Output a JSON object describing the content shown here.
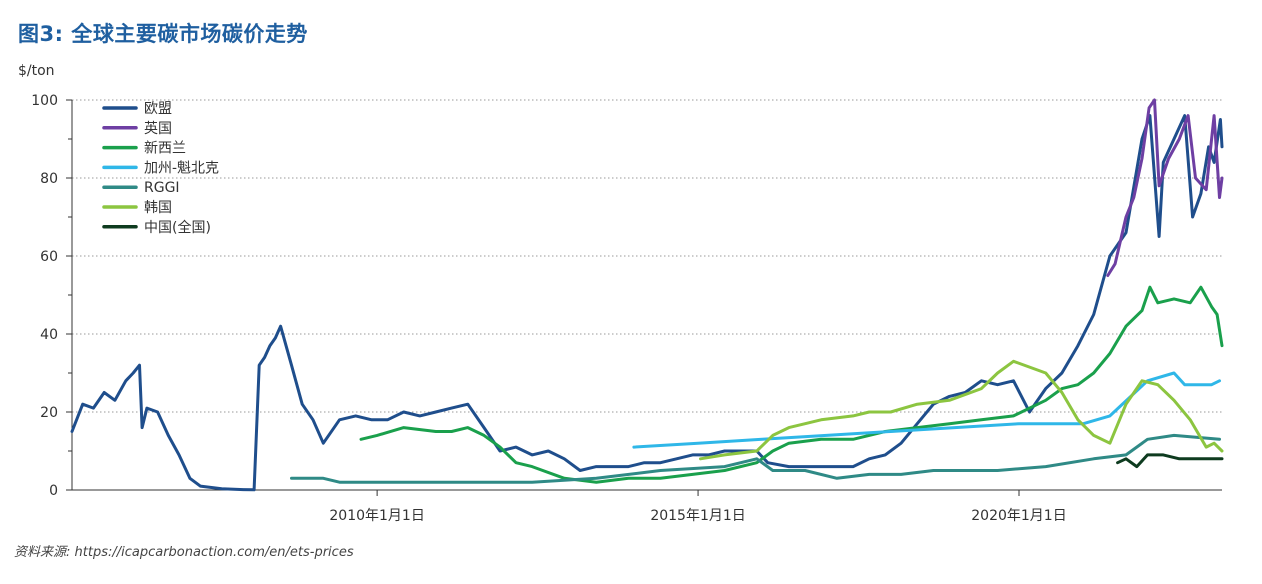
{
  "page": {
    "title": "图3: 全球主要碳市场碳价走势",
    "source": "资料来源: https://icapcarbonaction.com/en/ets-prices"
  },
  "chart_data": {
    "type": "line",
    "title": "图3: 全球主要碳市场碳价走势",
    "ylabel": "$/ton",
    "xlabel": "",
    "ylim": [
      0,
      100
    ],
    "xlim": [
      "2005-04-01",
      "2023-03-01"
    ],
    "yticks": [
      0,
      20,
      40,
      60,
      80,
      100
    ],
    "xticks": [
      {
        "date": "2010-01-01",
        "label": "2010年1月1日"
      },
      {
        "date": "2015-01-01",
        "label": "2015年1月1日"
      },
      {
        "date": "2020-01-01",
        "label": "2020年1月1日"
      }
    ],
    "grid": "horizontal dotted",
    "legend": "top-left",
    "series": [
      {
        "name": "欧盟",
        "color": "#1f4e8c",
        "points": [
          [
            "2005-04-01",
            15
          ],
          [
            "2005-06-01",
            22
          ],
          [
            "2005-08-01",
            21
          ],
          [
            "2005-10-01",
            25
          ],
          [
            "2005-12-01",
            23
          ],
          [
            "2006-02-01",
            28
          ],
          [
            "2006-03-15",
            30
          ],
          [
            "2006-04-20",
            32
          ],
          [
            "2006-05-05",
            16
          ],
          [
            "2006-06-01",
            21
          ],
          [
            "2006-08-01",
            20
          ],
          [
            "2006-10-01",
            14
          ],
          [
            "2006-12-01",
            9
          ],
          [
            "2007-02-01",
            3
          ],
          [
            "2007-04-01",
            1
          ],
          [
            "2007-08-01",
            0.3
          ],
          [
            "2007-12-01",
            0.1
          ],
          [
            "2008-02-01",
            0.05
          ],
          [
            "2008-03-01",
            32
          ],
          [
            "2008-04-01",
            34
          ],
          [
            "2008-05-01",
            37
          ],
          [
            "2008-06-01",
            39
          ],
          [
            "2008-07-01",
            42
          ],
          [
            "2008-09-01",
            32
          ],
          [
            "2008-11-01",
            22
          ],
          [
            "2009-01-01",
            18
          ],
          [
            "2009-03-01",
            12
          ],
          [
            "2009-06-01",
            18
          ],
          [
            "2009-09-01",
            19
          ],
          [
            "2009-12-01",
            18
          ],
          [
            "2010-03-01",
            18
          ],
          [
            "2010-06-01",
            20
          ],
          [
            "2010-09-01",
            19
          ],
          [
            "2010-12-01",
            20
          ],
          [
            "2011-03-01",
            21
          ],
          [
            "2011-06-01",
            22
          ],
          [
            "2011-09-01",
            16
          ],
          [
            "2011-12-01",
            10
          ],
          [
            "2012-03-01",
            11
          ],
          [
            "2012-06-01",
            9
          ],
          [
            "2012-09-01",
            10
          ],
          [
            "2012-12-01",
            8
          ],
          [
            "2013-03-01",
            5
          ],
          [
            "2013-06-01",
            6
          ],
          [
            "2013-09-01",
            6
          ],
          [
            "2013-12-01",
            6
          ],
          [
            "2014-03-01",
            7
          ],
          [
            "2014-06-01",
            7
          ],
          [
            "2014-09-01",
            8
          ],
          [
            "2014-12-01",
            9
          ],
          [
            "2015-03-01",
            9
          ],
          [
            "2015-06-01",
            10
          ],
          [
            "2015-09-01",
            10
          ],
          [
            "2015-12-01",
            10
          ],
          [
            "2016-02-01",
            7
          ],
          [
            "2016-06-01",
            6
          ],
          [
            "2016-09-01",
            6
          ],
          [
            "2016-12-01",
            6
          ],
          [
            "2017-03-01",
            6
          ],
          [
            "2017-06-01",
            6
          ],
          [
            "2017-09-01",
            8
          ],
          [
            "2017-12-01",
            9
          ],
          [
            "2018-03-01",
            12
          ],
          [
            "2018-06-01",
            17
          ],
          [
            "2018-09-01",
            22
          ],
          [
            "2018-12-01",
            24
          ],
          [
            "2019-03-01",
            25
          ],
          [
            "2019-06-01",
            28
          ],
          [
            "2019-09-01",
            27
          ],
          [
            "2019-12-01",
            28
          ],
          [
            "2020-03-01",
            20
          ],
          [
            "2020-06-01",
            26
          ],
          [
            "2020-09-01",
            30
          ],
          [
            "2020-12-01",
            37
          ],
          [
            "2021-03-01",
            45
          ],
          [
            "2021-06-01",
            60
          ],
          [
            "2021-09-01",
            66
          ],
          [
            "2021-12-01",
            90
          ],
          [
            "2022-01-15",
            96
          ],
          [
            "2022-03-08",
            65
          ],
          [
            "2022-04-01",
            84
          ],
          [
            "2022-06-01",
            90
          ],
          [
            "2022-08-01",
            96
          ],
          [
            "2022-09-15",
            70
          ],
          [
            "2022-11-01",
            76
          ],
          [
            "2022-12-15",
            88
          ],
          [
            "2023-01-15",
            84
          ],
          [
            "2023-02-20",
            95
          ],
          [
            "2023-03-01",
            88
          ]
        ]
      },
      {
        "name": "英国",
        "color": "#6e3fa3",
        "points": [
          [
            "2021-05-20",
            55
          ],
          [
            "2021-07-01",
            58
          ],
          [
            "2021-09-01",
            70
          ],
          [
            "2021-10-15",
            75
          ],
          [
            "2021-12-01",
            85
          ],
          [
            "2022-01-10",
            98
          ],
          [
            "2022-02-10",
            100
          ],
          [
            "2022-03-08",
            78
          ],
          [
            "2022-05-01",
            85
          ],
          [
            "2022-07-01",
            90
          ],
          [
            "2022-08-20",
            96
          ],
          [
            "2022-10-01",
            80
          ],
          [
            "2022-12-01",
            77
          ],
          [
            "2023-01-15",
            96
          ],
          [
            "2023-02-15",
            75
          ],
          [
            "2023-03-01",
            80
          ]
        ]
      },
      {
        "name": "新西兰",
        "color": "#1aa04c",
        "points": [
          [
            "2009-10-01",
            13
          ],
          [
            "2010-01-01",
            14
          ],
          [
            "2010-06-01",
            16
          ],
          [
            "2010-12-01",
            15
          ],
          [
            "2011-03-01",
            15
          ],
          [
            "2011-06-01",
            16
          ],
          [
            "2011-09-01",
            14
          ],
          [
            "2011-12-01",
            11
          ],
          [
            "2012-03-01",
            7
          ],
          [
            "2012-06-01",
            6
          ],
          [
            "2012-12-01",
            3
          ],
          [
            "2013-06-01",
            2
          ],
          [
            "2013-12-01",
            3
          ],
          [
            "2014-06-01",
            3
          ],
          [
            "2014-12-01",
            4
          ],
          [
            "2015-06-01",
            5
          ],
          [
            "2015-12-01",
            7
          ],
          [
            "2016-03-01",
            10
          ],
          [
            "2016-06-01",
            12
          ],
          [
            "2016-12-01",
            13
          ],
          [
            "2017-06-01",
            13
          ],
          [
            "2017-12-01",
            15
          ],
          [
            "2018-06-01",
            16
          ],
          [
            "2018-12-01",
            17
          ],
          [
            "2019-06-01",
            18
          ],
          [
            "2019-12-01",
            19
          ],
          [
            "2020-06-01",
            23
          ],
          [
            "2020-09-01",
            26
          ],
          [
            "2020-12-01",
            27
          ],
          [
            "2021-03-01",
            30
          ],
          [
            "2021-06-01",
            35
          ],
          [
            "2021-09-01",
            42
          ],
          [
            "2021-12-01",
            46
          ],
          [
            "2022-01-15",
            52
          ],
          [
            "2022-03-01",
            48
          ],
          [
            "2022-06-01",
            49
          ],
          [
            "2022-09-01",
            48
          ],
          [
            "2022-11-01",
            52
          ],
          [
            "2023-01-01",
            47
          ],
          [
            "2023-02-01",
            45
          ],
          [
            "2023-03-01",
            37
          ]
        ]
      },
      {
        "name": "加州-魁北克",
        "color": "#2fb7e8",
        "points": [
          [
            "2014-01-01",
            11
          ],
          [
            "2015-01-01",
            12
          ],
          [
            "2016-01-01",
            13
          ],
          [
            "2017-01-01",
            14
          ],
          [
            "2018-01-01",
            15
          ],
          [
            "2019-01-01",
            16
          ],
          [
            "2020-01-01",
            17
          ],
          [
            "2021-01-01",
            17
          ],
          [
            "2021-06-01",
            19
          ],
          [
            "2022-01-01",
            28
          ],
          [
            "2022-06-01",
            30
          ],
          [
            "2022-08-01",
            27
          ],
          [
            "2023-01-01",
            27
          ],
          [
            "2023-02-15",
            28
          ]
        ]
      },
      {
        "name": "RGGI",
        "color": "#2f8a86",
        "points": [
          [
            "2008-09-01",
            3
          ],
          [
            "2009-03-01",
            3
          ],
          [
            "2009-06-01",
            2
          ],
          [
            "2010-06-01",
            2
          ],
          [
            "2012-06-01",
            2
          ],
          [
            "2013-06-01",
            3
          ],
          [
            "2014-06-01",
            5
          ],
          [
            "2015-06-01",
            6
          ],
          [
            "2015-12-01",
            8
          ],
          [
            "2016-03-01",
            5
          ],
          [
            "2016-09-01",
            5
          ],
          [
            "2017-03-01",
            3
          ],
          [
            "2017-09-01",
            4
          ],
          [
            "2018-03-01",
            4
          ],
          [
            "2018-09-01",
            5
          ],
          [
            "2019-03-01",
            5
          ],
          [
            "2019-09-01",
            5
          ],
          [
            "2020-06-01",
            6
          ],
          [
            "2021-03-01",
            8
          ],
          [
            "2021-09-01",
            9
          ],
          [
            "2022-01-01",
            13
          ],
          [
            "2022-06-01",
            14
          ],
          [
            "2023-02-15",
            13
          ]
        ]
      },
      {
        "name": "韩国",
        "color": "#8cc540",
        "points": [
          [
            "2015-01-15",
            8
          ],
          [
            "2015-06-01",
            9
          ],
          [
            "2015-12-01",
            10
          ],
          [
            "2016-03-01",
            14
          ],
          [
            "2016-06-01",
            16
          ],
          [
            "2016-09-01",
            17
          ],
          [
            "2016-12-01",
            18
          ],
          [
            "2017-06-01",
            19
          ],
          [
            "2017-09-01",
            20
          ],
          [
            "2018-01-01",
            20
          ],
          [
            "2018-06-01",
            22
          ],
          [
            "2018-12-01",
            23
          ],
          [
            "2019-06-01",
            26
          ],
          [
            "2019-09-01",
            30
          ],
          [
            "2019-12-01",
            33
          ],
          [
            "2020-06-01",
            30
          ],
          [
            "2020-09-01",
            25
          ],
          [
            "2020-12-01",
            18
          ],
          [
            "2021-03-01",
            14
          ],
          [
            "2021-06-01",
            12
          ],
          [
            "2021-09-01",
            22
          ],
          [
            "2021-12-01",
            28
          ],
          [
            "2022-03-01",
            27
          ],
          [
            "2022-06-01",
            23
          ],
          [
            "2022-09-01",
            18
          ],
          [
            "2022-12-01",
            11
          ],
          [
            "2023-01-15",
            12
          ],
          [
            "2023-03-01",
            10
          ]
        ]
      },
      {
        "name": "中国(全国)",
        "color": "#0e3b1f",
        "points": [
          [
            "2021-07-15",
            7
          ],
          [
            "2021-09-01",
            8
          ],
          [
            "2021-11-01",
            6
          ],
          [
            "2022-01-01",
            9
          ],
          [
            "2022-04-01",
            9
          ],
          [
            "2022-07-01",
            8
          ],
          [
            "2022-10-01",
            8
          ],
          [
            "2023-01-01",
            8
          ],
          [
            "2023-03-01",
            8
          ]
        ]
      }
    ]
  }
}
